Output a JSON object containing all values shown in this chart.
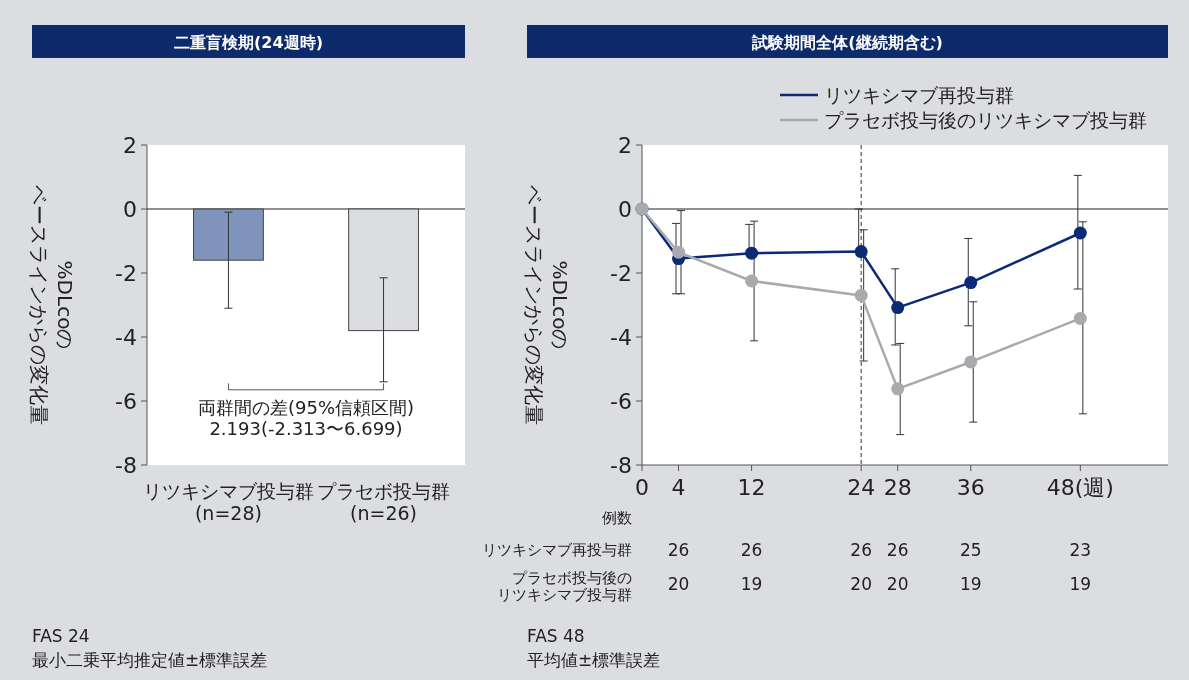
{
  "chart_data": [
    {
      "type": "bar",
      "title": "二重盲検期(24週時)",
      "categories": [
        "リツキシマブ投与群\n(n=28)",
        "プラセボ投与群\n(n=26)"
      ],
      "values": [
        -1.6,
        -3.8
      ],
      "colors": [
        "#7f93bb",
        "#dcdde0"
      ],
      "errors": [
        [
          -3.1,
          -0.1
        ],
        [
          -5.4,
          -2.15
        ]
      ],
      "ylim": [
        -8,
        2
      ],
      "yticks": [
        -8,
        -6,
        -4,
        -2,
        0,
        2
      ],
      "ylabel": "%DLcoのベースラインからの変化量",
      "annotations": [
        "両群間の差(95%信頼区間)\n2.193(-2.313〜6.699)",
        "FAS 24",
        "最小二乗平均推定値±標準誤差"
      ]
    },
    {
      "type": "line",
      "title": "試験期間全体(継続期含む)",
      "x": [
        0,
        4,
        12,
        24,
        28,
        36,
        48
      ],
      "xlim": [
        0,
        57.6
      ],
      "xticks": [
        0,
        4,
        12,
        24,
        28,
        36,
        {
          "value": 48,
          "label": "48(週)"
        }
      ],
      "ylim": [
        -8,
        2
      ],
      "yticks": [
        -8,
        -6,
        -4,
        -2,
        0,
        2
      ],
      "ylabel": "%DLcoのベースラインからの変化量",
      "marker": "circle",
      "legend": "top right",
      "ref_lines": [
        {
          "axis": "x",
          "value": 24,
          "line_style": "dashed"
        }
      ],
      "series": [
        {
          "name": "リツキシマブ再投与群",
          "color": "#0a2a78",
          "values": [
            0,
            -1.55,
            -1.38,
            -1.33,
            -3.08,
            -2.3,
            -0.75
          ],
          "errors": [
            null,
            [
              -2.65,
              -0.45
            ],
            [
              -1.38,
              -0.48
            ],
            [
              -1.33,
              0
            ],
            [
              -4.25,
              -1.87
            ],
            [
              -3.65,
              -0.92
            ],
            [
              -2.5,
              1.05
            ]
          ]
        },
        {
          "name": "プラセボ投与後のリツキシマブ投与群",
          "color": "#a9aaad",
          "values": [
            0,
            -1.35,
            -2.25,
            -2.7,
            -5.62,
            -4.78,
            -3.42
          ],
          "errors": [
            null,
            [
              -2.65,
              -0.05
            ],
            [
              -4.12,
              -0.38
            ],
            [
              -4.75,
              -0.65
            ],
            [
              -7.05,
              -4.2
            ],
            [
              -6.66,
              -2.9
            ],
            [
              -6.4,
              -0.4
            ]
          ]
        }
      ],
      "annotations": [
        "例数",
        "リツキシマブ再投与群",
        "プラセボ投与後のリツキシマブ投与群",
        "26",
        "26",
        "26",
        "26",
        "25",
        "23",
        "20",
        "19",
        "20",
        "20",
        "19",
        "19",
        "FAS 48",
        "平均値±標準誤差"
      ]
    }
  ]
}
